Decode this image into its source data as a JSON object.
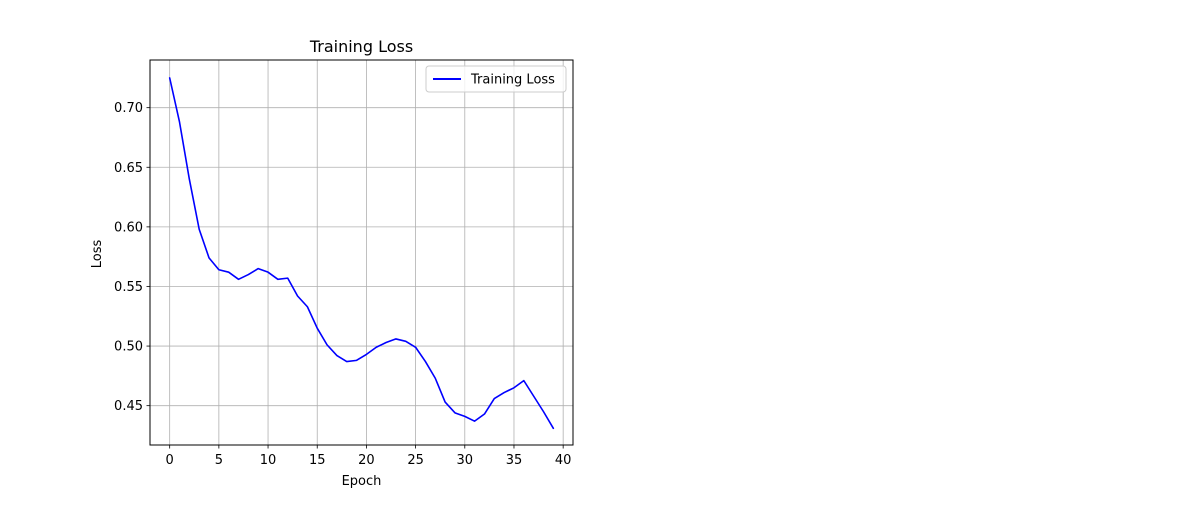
{
  "chart_data": {
    "type": "line",
    "title": "Training Loss",
    "xlabel": "Epoch",
    "ylabel": "Loss",
    "xlim": [
      -2,
      41
    ],
    "ylim": [
      0.417,
      0.74
    ],
    "xticks": [
      0,
      5,
      10,
      15,
      20,
      25,
      30,
      35,
      40
    ],
    "yticks": [
      0.45,
      0.5,
      0.55,
      0.6,
      0.65,
      0.7
    ],
    "xtick_labels": [
      "0",
      "5",
      "10",
      "15",
      "20",
      "25",
      "30",
      "35",
      "40"
    ],
    "ytick_labels": [
      "0.45",
      "0.50",
      "0.55",
      "0.60",
      "0.65",
      "0.70"
    ],
    "grid": true,
    "legend_position": "top-right",
    "series": [
      {
        "name": "Training Loss",
        "color": "#0000ff",
        "x": [
          0,
          1,
          2,
          3,
          4,
          5,
          6,
          7,
          8,
          9,
          10,
          11,
          12,
          13,
          14,
          15,
          16,
          17,
          18,
          19,
          20,
          21,
          22,
          23,
          24,
          25,
          26,
          27,
          28,
          29,
          30,
          31,
          32,
          33,
          34,
          35,
          36,
          37,
          38,
          39
        ],
        "y": [
          0.725,
          0.688,
          0.64,
          0.598,
          0.574,
          0.564,
          0.562,
          0.556,
          0.56,
          0.565,
          0.562,
          0.556,
          0.557,
          0.542,
          0.533,
          0.515,
          0.501,
          0.492,
          0.487,
          0.488,
          0.493,
          0.499,
          0.503,
          0.506,
          0.504,
          0.499,
          0.487,
          0.473,
          0.453,
          0.444,
          0.441,
          0.437,
          0.443,
          0.456,
          0.461,
          0.465,
          0.471,
          0.458,
          0.445,
          0.431
        ]
      }
    ]
  }
}
